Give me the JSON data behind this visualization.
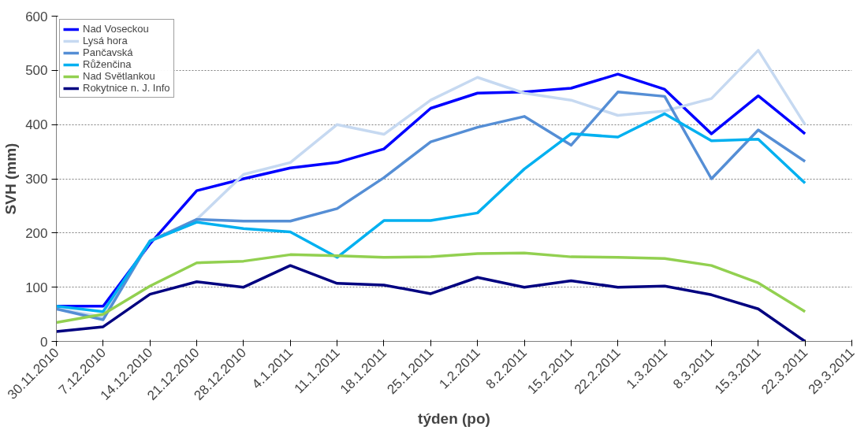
{
  "chart_data": {
    "type": "line",
    "xlabel": "týden (po)",
    "ylabel": "SVH (mm)",
    "categories": [
      "30.11.2010",
      "7.12.2010",
      "14.12.2010",
      "21.12.2010",
      "28.12.2010",
      "4.1.2011",
      "11.1.2011",
      "18.1.2011",
      "25.1.2011",
      "1.2.2011",
      "8.2.2011",
      "15.2.2011",
      "22.2.2011",
      "1.3.2011",
      "8.3.2011",
      "15.3.2011",
      "22.3.2011",
      "29.3.2011"
    ],
    "series": [
      {
        "name": "Nad Voseckou",
        "color": "#0000ff",
        "values": [
          65,
          65,
          180,
          278,
          300,
          320,
          330,
          355,
          430,
          458,
          460,
          467,
          493,
          465,
          383,
          453,
          383,
          null
        ]
      },
      {
        "name": "Lysá hora",
        "color": "#c6d9f1",
        "values": [
          60,
          45,
          185,
          225,
          308,
          330,
          400,
          382,
          445,
          487,
          458,
          445,
          417,
          425,
          448,
          537,
          400,
          null
        ]
      },
      {
        "name": "Pančavská",
        "color": "#558ed5",
        "values": [
          60,
          40,
          185,
          225,
          222,
          222,
          245,
          302,
          368,
          395,
          415,
          362,
          460,
          452,
          300,
          390,
          332,
          null
        ]
      },
      {
        "name": "Růženčina",
        "color": "#00b0f0",
        "values": [
          65,
          55,
          185,
          220,
          208,
          202,
          155,
          223,
          223,
          237,
          318,
          383,
          377,
          420,
          370,
          373,
          292,
          null
        ]
      },
      {
        "name": "Nad Světlankou",
        "color": "#92d050",
        "values": [
          35,
          50,
          102,
          145,
          148,
          160,
          158,
          155,
          156,
          162,
          163,
          156,
          155,
          153,
          140,
          108,
          55,
          null
        ]
      },
      {
        "name": "Rokytnice n. J. Info",
        "color": "#000080",
        "values": [
          18,
          27,
          87,
          110,
          100,
          140,
          107,
          104,
          88,
          118,
          100,
          112,
          100,
          102,
          86,
          60,
          0,
          null
        ]
      }
    ],
    "ylim": [
      0,
      600
    ],
    "yticks": [
      0,
      100,
      200,
      300,
      400,
      500,
      600
    ],
    "grid": "y",
    "legend": "top left"
  }
}
